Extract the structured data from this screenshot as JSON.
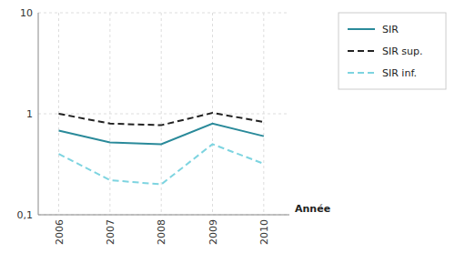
{
  "chart_data": {
    "type": "line",
    "x_label": "Année",
    "x": [
      2006,
      2007,
      2008,
      2009,
      2010
    ],
    "xlim": [
      2005.6,
      2010.5
    ],
    "xticks": [
      2006,
      2007,
      2008,
      2009,
      2010
    ],
    "ylim": [
      0.1,
      10
    ],
    "yticks": [
      {
        "value": 0.1,
        "label": "0,1"
      },
      1,
      10
    ],
    "log": "y",
    "grid": true,
    "legend": "right",
    "series": [
      {
        "name": "SIR",
        "color": "#2a8a9a",
        "line_style": "solid",
        "values": [
          0.68,
          0.52,
          0.5,
          0.8,
          0.6
        ]
      },
      {
        "name": "SIR sup.",
        "color": "#222222",
        "line_style": "dashed",
        "values": [
          1.0,
          0.8,
          0.77,
          1.02,
          0.83
        ]
      },
      {
        "name": "SIR inf.",
        "color": "#7dd4e0",
        "line_style": "dashed",
        "values": [
          0.4,
          0.22,
          0.2,
          0.5,
          0.32
        ]
      }
    ]
  }
}
